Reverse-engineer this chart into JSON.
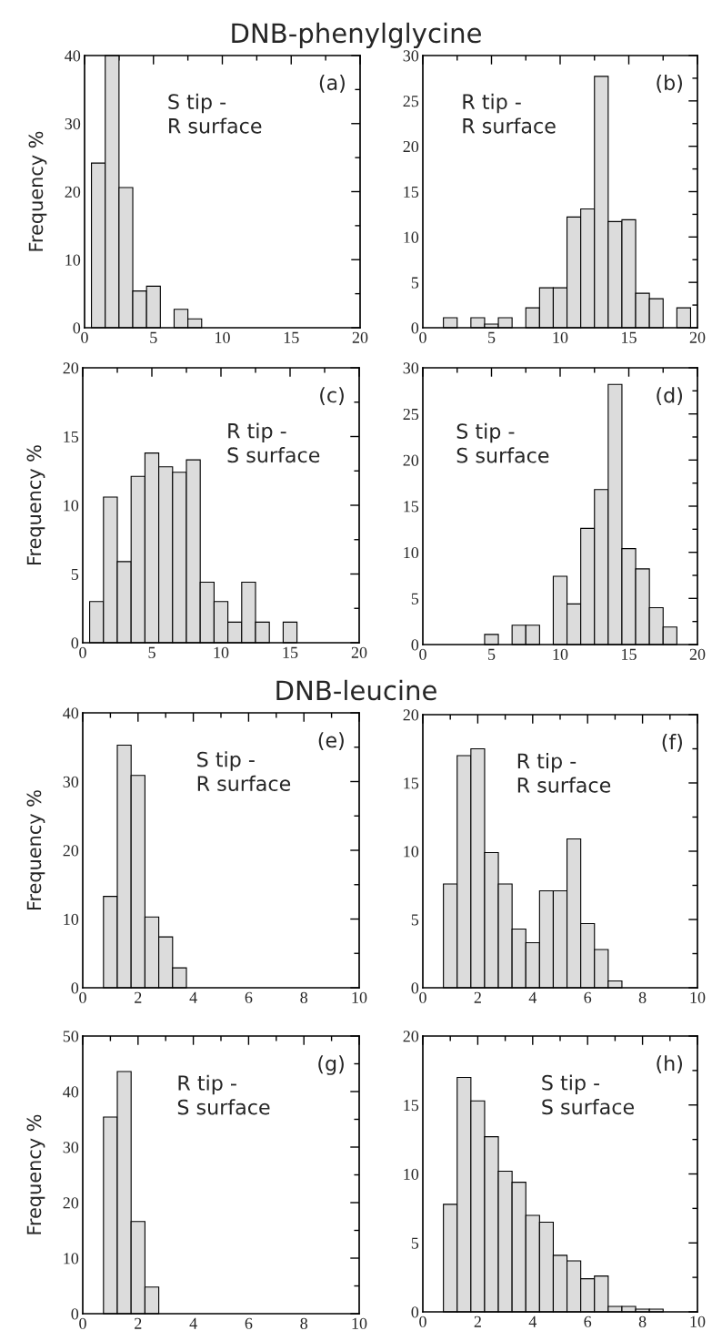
{
  "chart_data": [
    {
      "type": "histogram",
      "title": "DNB-phenylglycine",
      "ylabel": "Frequency %",
      "annotations": [
        "(a)",
        "S tip -\nR surface"
      ],
      "color": "#dcdcdc",
      "bins": [
        0.5,
        1.5,
        2.5,
        3.5,
        4.5,
        5.5,
        6.5,
        7.5,
        8.5
      ],
      "values": [
        24.2,
        40,
        20.6,
        5.4,
        6.1,
        null,
        2.7,
        1.3
      ],
      "xlim": [
        0,
        20
      ],
      "xticks": [
        0,
        5,
        10,
        15,
        20
      ],
      "ylim": [
        0,
        40
      ],
      "yticks": [
        0,
        10,
        20,
        30,
        40
      ]
    },
    {
      "type": "histogram",
      "annotations": [
        "(b)",
        "R tip -\nR surface"
      ],
      "color": "#dcdcdc",
      "bins": [
        1.5,
        2.5,
        3.5,
        4.5,
        5.5,
        6.5,
        7.5,
        8.5,
        9.5,
        10.5,
        11.5,
        12.5,
        13.5,
        14.5,
        15.5,
        16.5,
        17.5,
        18.5,
        19.5
      ],
      "values": [
        1.1,
        null,
        1.1,
        0.4,
        1.1,
        null,
        2.2,
        4.4,
        4.4,
        12.2,
        13.1,
        27.7,
        11.7,
        11.9,
        3.8,
        3.2,
        null,
        2.2
      ],
      "xlim": [
        0,
        20
      ],
      "xticks": [
        0,
        5,
        10,
        15,
        20
      ],
      "ylim": [
        0,
        30
      ],
      "yticks": [
        0,
        5,
        10,
        15,
        20,
        25,
        30
      ]
    },
    {
      "type": "histogram",
      "ylabel": "Frequency %",
      "annotations": [
        "(c)",
        "R tip -\nS surface"
      ],
      "color": "#dcdcdc",
      "bins": [
        0.5,
        1.5,
        2.5,
        3.5,
        4.5,
        5.5,
        6.5,
        7.5,
        8.5,
        9.5,
        10.5,
        11.5,
        12.5,
        13.5,
        14.5,
        15.5
      ],
      "values": [
        3.0,
        10.6,
        5.9,
        12.1,
        13.8,
        12.8,
        12.4,
        13.3,
        4.4,
        3.0,
        1.5,
        4.4,
        1.5,
        null,
        1.5
      ],
      "xlim": [
        0,
        20
      ],
      "xticks": [
        0,
        5,
        10,
        15,
        20
      ],
      "ylim": [
        0,
        20
      ],
      "yticks": [
        0,
        5,
        10,
        15,
        20
      ]
    },
    {
      "type": "histogram",
      "annotations": [
        "(d)",
        "S tip -\nS surface"
      ],
      "color": "#dcdcdc",
      "bins": [
        4.5,
        5.5,
        6.5,
        7.5,
        8.5,
        9.5,
        10.5,
        11.5,
        12.5,
        13.5,
        14.5,
        15.5,
        16.5,
        17.5,
        18.5
      ],
      "values": [
        1.1,
        null,
        2.1,
        2.1,
        null,
        7.4,
        4.4,
        12.6,
        16.8,
        28.2,
        10.4,
        8.2,
        4.0,
        1.9
      ],
      "xlim": [
        0,
        20
      ],
      "xticks": [
        0,
        5,
        10,
        15,
        20
      ],
      "ylim": [
        0,
        30
      ],
      "yticks": [
        0,
        5,
        10,
        15,
        20,
        25,
        30
      ]
    },
    {
      "type": "histogram",
      "title": "DNB-leucine",
      "ylabel": "Frequency %",
      "annotations": [
        "(e)",
        "S tip -\nR surface"
      ],
      "color": "#dcdcdc",
      "bins": [
        0.75,
        1.25,
        1.75,
        2.25,
        2.75,
        3.25,
        3.75
      ],
      "values": [
        13.3,
        35.3,
        30.9,
        10.3,
        7.4,
        2.9
      ],
      "xlim": [
        0,
        10
      ],
      "xticks": [
        0,
        2,
        4,
        6,
        8,
        10
      ],
      "ylim": [
        0,
        40
      ],
      "yticks": [
        0,
        10,
        20,
        30,
        40
      ]
    },
    {
      "type": "histogram",
      "annotations": [
        "(f)",
        "R tip -\nR surface"
      ],
      "color": "#dcdcdc",
      "bins": [
        0.75,
        1.25,
        1.75,
        2.25,
        2.75,
        3.25,
        3.75,
        4.25,
        4.75,
        5.25,
        5.75,
        6.25,
        6.75,
        7.25
      ],
      "values": [
        7.6,
        17.0,
        17.5,
        9.9,
        7.6,
        4.3,
        3.3,
        7.1,
        7.1,
        10.9,
        4.7,
        2.8,
        0.5
      ],
      "xlim": [
        0,
        10
      ],
      "xticks": [
        0,
        2,
        4,
        6,
        8,
        10
      ],
      "ylim": [
        0,
        20
      ],
      "yticks": [
        0,
        5,
        10,
        15,
        20
      ]
    },
    {
      "type": "histogram",
      "ylabel": "Frequency %",
      "annotations": [
        "(g)",
        "R tip -\nS surface"
      ],
      "color": "#dcdcdc",
      "bins": [
        0.75,
        1.25,
        1.75,
        2.25,
        2.75
      ],
      "values": [
        35.4,
        43.6,
        16.6,
        4.8
      ],
      "xlim": [
        0,
        10
      ],
      "xticks": [
        0,
        2,
        4,
        6,
        8,
        10
      ],
      "ylim": [
        0,
        50
      ],
      "yticks": [
        0,
        10,
        20,
        30,
        40,
        50
      ]
    },
    {
      "type": "histogram",
      "annotations": [
        "(h)",
        "S tip -\nS surface"
      ],
      "color": "#dcdcdc",
      "bins": [
        0.75,
        1.25,
        1.75,
        2.25,
        2.75,
        3.25,
        3.75,
        4.25,
        4.75,
        5.25,
        5.75,
        6.25,
        6.75,
        7.25,
        7.75,
        8.25,
        8.75
      ],
      "values": [
        7.8,
        17.0,
        15.3,
        12.7,
        10.2,
        9.4,
        7.0,
        6.5,
        4.1,
        3.7,
        2.4,
        2.6,
        0.4,
        0.4,
        0.2,
        0.2
      ],
      "xlim": [
        0,
        10
      ],
      "xticks": [
        0,
        2,
        4,
        6,
        8,
        10
      ],
      "ylim": [
        0,
        20
      ],
      "yticks": [
        0,
        5,
        10,
        15,
        20
      ]
    }
  ]
}
